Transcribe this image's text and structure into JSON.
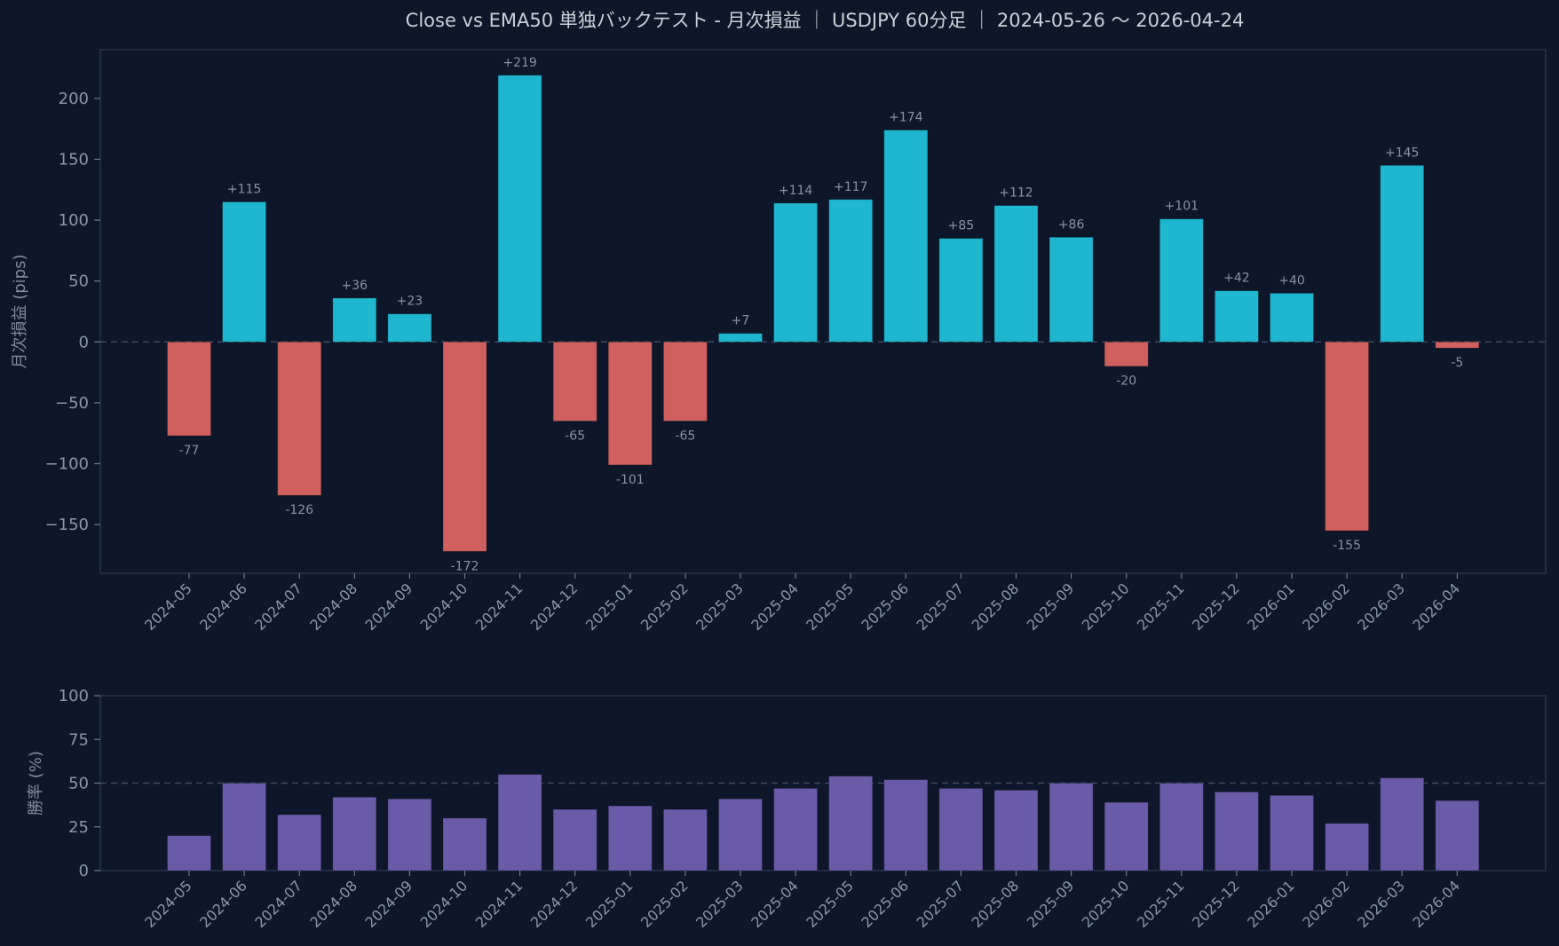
{
  "title": "Close vs EMA50 単独バックテスト - 月次損益 ｜ USDJPY 60分足 ｜ 2024-05-26 〜 2026-04-24",
  "colors": {
    "background": "#0e1729",
    "axes_border": "#26334a",
    "positive": "#1fb6cf",
    "negative": "#d06060",
    "winrate": "#6a5ba8",
    "reference_line": "#3b4a63"
  },
  "chart_data": [
    {
      "type": "bar",
      "name": "monthly-pnl",
      "ylabel": "月次損益 (pips)",
      "ylim": [
        -190,
        240
      ],
      "yticks": [
        -150,
        -100,
        -50,
        0,
        50,
        100,
        150,
        200
      ],
      "ytick_labels": [
        "−150",
        "−100",
        "−50",
        "0",
        "50",
        "100",
        "150",
        "200"
      ],
      "reference_line": 0,
      "categories": [
        "2024-05",
        "2024-06",
        "2024-07",
        "2024-08",
        "2024-09",
        "2024-10",
        "2024-11",
        "2024-12",
        "2025-01",
        "2025-02",
        "2025-03",
        "2025-04",
        "2025-05",
        "2025-06",
        "2025-07",
        "2025-08",
        "2025-09",
        "2025-10",
        "2025-11",
        "2025-12",
        "2026-01",
        "2026-02",
        "2026-03",
        "2026-04"
      ],
      "values": [
        -77,
        115,
        -126,
        36,
        23,
        -172,
        219,
        -65,
        -101,
        -65,
        7,
        114,
        117,
        174,
        85,
        112,
        86,
        -20,
        101,
        42,
        40,
        -155,
        145,
        -5
      ],
      "data_labels": [
        "-77",
        "+115",
        "-126",
        "+36",
        "+23",
        "-172",
        "+219",
        "-65",
        "-101",
        "-65",
        "+7",
        "+114",
        "+117",
        "+174",
        "+85",
        "+112",
        "+86",
        "-20",
        "+101",
        "+42",
        "+40",
        "-155",
        "+145",
        "-5"
      ]
    },
    {
      "type": "bar",
      "name": "win-rate",
      "ylabel": "勝率 (%)",
      "ylim": [
        0,
        100
      ],
      "yticks": [
        0,
        25,
        50,
        75,
        100
      ],
      "ytick_labels": [
        "0",
        "25",
        "50",
        "75",
        "100"
      ],
      "reference_line": 50,
      "categories": [
        "2024-05",
        "2024-06",
        "2024-07",
        "2024-08",
        "2024-09",
        "2024-10",
        "2024-11",
        "2024-12",
        "2025-01",
        "2025-02",
        "2025-03",
        "2025-04",
        "2025-05",
        "2025-06",
        "2025-07",
        "2025-08",
        "2025-09",
        "2025-10",
        "2025-11",
        "2025-12",
        "2026-01",
        "2026-02",
        "2026-03",
        "2026-04"
      ],
      "values": [
        20,
        50,
        32,
        42,
        41,
        30,
        55,
        35,
        37,
        35,
        41,
        47,
        54,
        52,
        47,
        46,
        50,
        39,
        50,
        45,
        43,
        27,
        53,
        40
      ]
    }
  ]
}
